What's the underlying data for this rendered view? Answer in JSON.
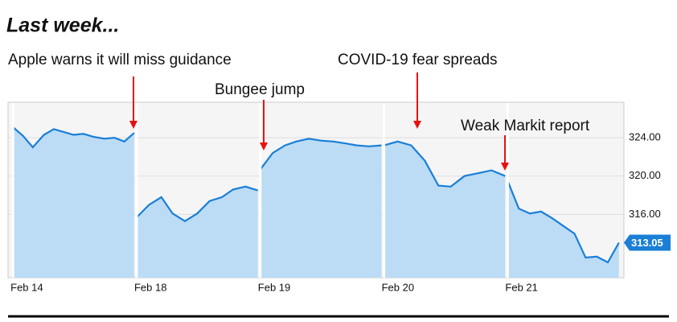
{
  "chart_data": {
    "type": "line",
    "title": "Last week...",
    "annotations": [
      "Apple warns it will miss guidance",
      "Bungee jump",
      "COVID-19 fear spreads",
      "Weak Markit report"
    ],
    "x": [
      0,
      0.08,
      0.16,
      0.25,
      0.33,
      0.41,
      0.49,
      0.57,
      0.65,
      0.74,
      0.82,
      0.9,
      0.98,
      0.99,
      1.0,
      1.1,
      1.2,
      1.29,
      1.39,
      1.49,
      1.59,
      1.69,
      1.78,
      1.88,
      1.98,
      1.99,
      2.0,
      2.1,
      2.2,
      2.29,
      2.39,
      2.49,
      2.59,
      2.69,
      2.78,
      2.88,
      2.98,
      2.99,
      3.0,
      3.11,
      3.22,
      3.33,
      3.44,
      3.54,
      3.65,
      3.76,
      3.87,
      3.98,
      3.99,
      4.0,
      4.09,
      4.18,
      4.27,
      4.36,
      4.45,
      4.54,
      4.63,
      4.72,
      4.81,
      4.9
    ],
    "values": [
      325.1,
      324.2,
      323.0,
      324.3,
      324.9,
      324.6,
      324.3,
      324.4,
      324.1,
      323.9,
      324.0,
      323.6,
      324.5,
      null,
      315.7,
      317.0,
      317.8,
      316.1,
      315.3,
      316.1,
      317.4,
      317.8,
      318.6,
      318.9,
      318.5,
      null,
      320.7,
      322.4,
      323.2,
      323.6,
      323.9,
      323.7,
      323.6,
      323.4,
      323.2,
      323.1,
      323.2,
      null,
      323.2,
      323.6,
      323.2,
      321.6,
      319.0,
      318.9,
      320.0,
      320.3,
      320.6,
      320.0,
      null,
      319.5,
      316.6,
      316.1,
      316.3,
      315.6,
      314.8,
      314.0,
      311.5,
      311.6,
      311.0,
      313.05
    ],
    "color": "#1a7fd6",
    "fill": "#bcdcf5",
    "xlim": [
      -0.04,
      4.94
    ],
    "xticks": [
      {
        "value": 0,
        "label": "Feb 14"
      },
      {
        "value": 1,
        "label": "Feb 18"
      },
      {
        "value": 2,
        "label": "Feb 19"
      },
      {
        "value": 3,
        "label": "Feb 20"
      },
      {
        "value": 4,
        "label": "Feb 21"
      }
    ],
    "ylim": [
      309.4,
      327.7
    ],
    "yticks": [
      {
        "value": 316,
        "label": "316.00"
      },
      {
        "value": 320,
        "label": "320.00"
      },
      {
        "value": 324,
        "label": "324.00"
      }
    ],
    "grid": true
  }
}
